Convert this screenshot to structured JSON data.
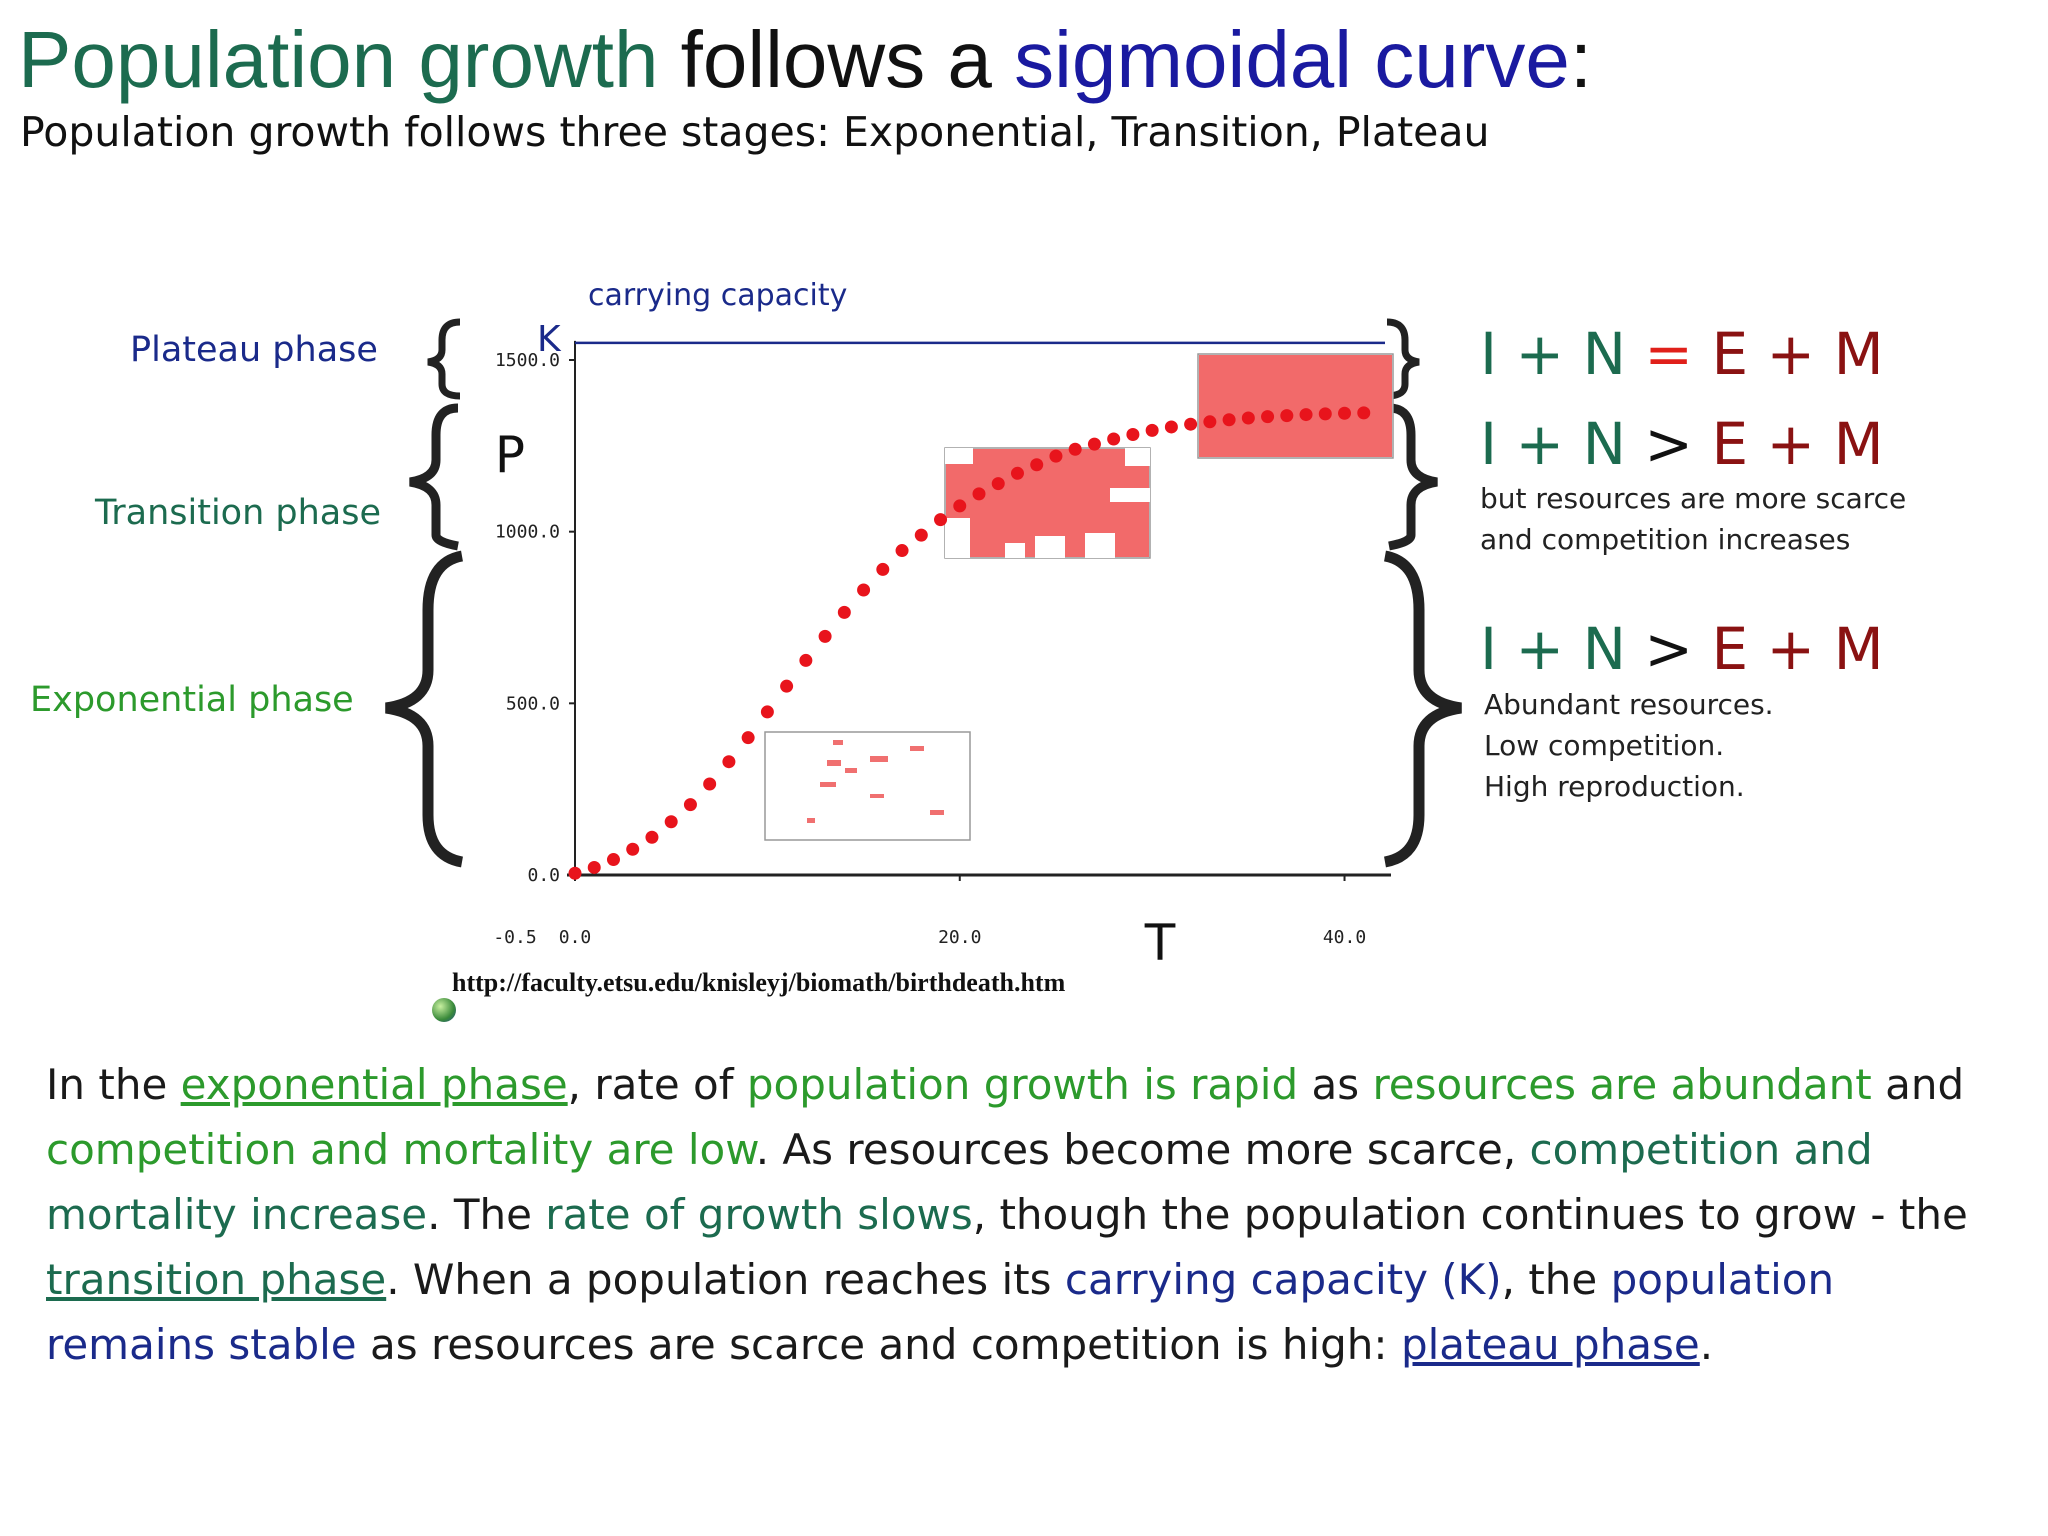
{
  "title": {
    "part1": "Population growth",
    "part2": " follows a ",
    "part3": "sigmoidal curve",
    "part4": ":"
  },
  "subtitle": "Population growth follows three stages: Exponential, Transition, Plateau",
  "phases": {
    "plateau": "Plateau phase",
    "transition": "Transition phase",
    "exponential": "Exponential phase"
  },
  "equations": {
    "plateau": {
      "lhs": "I + N",
      "op": "=",
      "rhs": "E + M"
    },
    "transition": {
      "lhs": "I + N",
      "op": ">",
      "rhs": "E + M",
      "note1": "but resources are more scarce",
      "note2": "and competition increases"
    },
    "exponential": {
      "lhs": "I + N",
      "op": ">",
      "rhs": "E + M",
      "note1": "Abundant resources.",
      "note2": "Low competition.",
      "note3": "High reproduction."
    }
  },
  "source_url": "http://faculty.etsu.edu/knisleyj/biomath/birthdeath.htm",
  "paragraph": {
    "s1": "In the ",
    "s2": "exponential phase",
    "s3": ", rate of ",
    "s4": "population growth is rapid",
    "s5": " as ",
    "s6": "resources are abundant",
    "s7": " and ",
    "s8": "competition and mortality are low",
    "s9": ". As resources become more scarce, ",
    "s10": "competition and mortality increase",
    "s11": ". The ",
    "s12": "rate of growth slows",
    "s13": ", though the population continues to grow - the ",
    "s14": "transition phase",
    "s15": ". When a population reaches its ",
    "s16": "carrying capacity (K)",
    "s17": ", the ",
    "s18": "population remains stable",
    "s19": " as resources are scarce and competition is high: ",
    "s20": "plateau phase",
    "s21": "."
  },
  "colors": {
    "green": "#2c9a2c",
    "teal": "#1c6b4f",
    "navy": "#1a2a8a",
    "red_eq": "#8a1212",
    "dots": "#e8141c",
    "k_line": "#1a2a8a"
  },
  "chart_data": {
    "type": "scatter",
    "x": [
      0,
      1,
      2,
      3,
      4,
      5,
      6,
      7,
      8,
      9,
      10,
      11,
      12,
      13,
      14,
      15,
      16,
      17,
      18,
      19,
      20,
      21,
      22,
      23,
      24,
      25,
      26,
      27,
      28,
      29,
      30,
      31,
      32,
      33,
      34,
      35,
      36,
      37,
      38,
      39,
      40,
      41
    ],
    "y": [
      5,
      22,
      45,
      75,
      110,
      155,
      205,
      265,
      330,
      400,
      475,
      550,
      625,
      695,
      765,
      830,
      890,
      945,
      990,
      1035,
      1075,
      1110,
      1140,
      1170,
      1195,
      1220,
      1240,
      1255,
      1270,
      1283,
      1295,
      1305,
      1313,
      1320,
      1326,
      1331,
      1335,
      1338,
      1341,
      1343,
      1345,
      1346
    ],
    "xlim": [
      0,
      42
    ],
    "ylim": [
      0,
      1500
    ],
    "xticks": [
      "-0.5",
      "0.0",
      "20.0",
      "40.0"
    ],
    "yticks": [
      "0.0",
      "500.0",
      "1000.0",
      "1500.0"
    ],
    "xlabel": "T",
    "ylabel": "P",
    "k_label": "K",
    "k_annotation": "carrying capacity",
    "k_value": 1550
  }
}
